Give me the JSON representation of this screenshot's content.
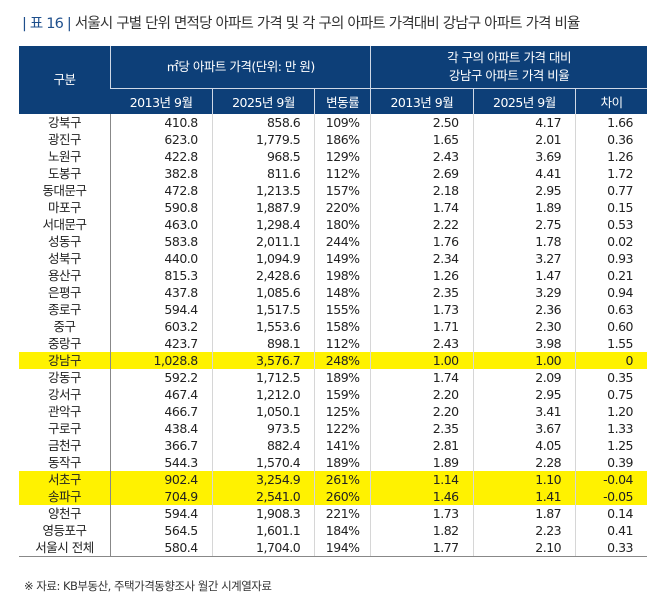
{
  "title": {
    "label": "| 표 16 |",
    "text": "서울시 구별 단위 면적당 아파트 가격 및 각 구의 아파트 가격대비 강남구 아파트 가격 비율"
  },
  "header": {
    "district": "구분",
    "group1": "㎡당 아파트 가격(단위: 만 원)",
    "group2_line1": "각 구의 아파트 가격 대비",
    "group2_line2": "강남구 아파트 가격 비율",
    "cols": [
      "2013년 9월",
      "2025년 9월",
      "변동률",
      "2013년 9월",
      "2025년 9월",
      "차이"
    ]
  },
  "highlight_color": "#fff200",
  "rows": [
    [
      "강북구",
      "410.8",
      "858.6",
      "109%",
      "2.50",
      "4.17",
      "1.66"
    ],
    [
      "광진구",
      "623.0",
      "1,779.5",
      "186%",
      "1.65",
      "2.01",
      "0.36"
    ],
    [
      "노원구",
      "422.8",
      "968.5",
      "129%",
      "2.43",
      "3.69",
      "1.26"
    ],
    [
      "도봉구",
      "382.8",
      "811.6",
      "112%",
      "2.69",
      "4.41",
      "1.72"
    ],
    [
      "동대문구",
      "472.8",
      "1,213.5",
      "157%",
      "2.18",
      "2.95",
      "0.77"
    ],
    [
      "마포구",
      "590.8",
      "1,887.9",
      "220%",
      "1.74",
      "1.89",
      "0.15"
    ],
    [
      "서대문구",
      "463.0",
      "1,298.4",
      "180%",
      "2.22",
      "2.75",
      "0.53"
    ],
    [
      "성동구",
      "583.8",
      "2,011.1",
      "244%",
      "1.76",
      "1.78",
      "0.02"
    ],
    [
      "성북구",
      "440.0",
      "1,094.9",
      "149%",
      "2.34",
      "3.27",
      "0.93"
    ],
    [
      "용산구",
      "815.3",
      "2,428.6",
      "198%",
      "1.26",
      "1.47",
      "0.21"
    ],
    [
      "은평구",
      "437.8",
      "1,085.6",
      "148%",
      "2.35",
      "3.29",
      "0.94"
    ],
    [
      "종로구",
      "594.4",
      "1,517.5",
      "155%",
      "1.73",
      "2.36",
      "0.63"
    ],
    [
      "중구",
      "603.2",
      "1,553.6",
      "158%",
      "1.71",
      "2.30",
      "0.60"
    ],
    [
      "중랑구",
      "423.7",
      "898.1",
      "112%",
      "2.43",
      "3.98",
      "1.55"
    ],
    [
      "강남구",
      "1,028.8",
      "3,576.7",
      "248%",
      "1.00",
      "1.00",
      "0"
    ],
    [
      "강동구",
      "592.2",
      "1,712.5",
      "189%",
      "1.74",
      "2.09",
      "0.35"
    ],
    [
      "강서구",
      "467.4",
      "1,212.0",
      "159%",
      "2.20",
      "2.95",
      "0.75"
    ],
    [
      "관악구",
      "466.7",
      "1,050.1",
      "125%",
      "2.20",
      "3.41",
      "1.20"
    ],
    [
      "구로구",
      "438.4",
      "973.5",
      "122%",
      "2.35",
      "3.67",
      "1.33"
    ],
    [
      "금천구",
      "366.7",
      "882.4",
      "141%",
      "2.81",
      "4.05",
      "1.25"
    ],
    [
      "동작구",
      "544.3",
      "1,570.4",
      "189%",
      "1.89",
      "2.28",
      "0.39"
    ],
    [
      "서초구",
      "902.4",
      "3,254.9",
      "261%",
      "1.14",
      "1.10",
      "-0.04"
    ],
    [
      "송파구",
      "704.9",
      "2,541.0",
      "260%",
      "1.46",
      "1.41",
      "-0.05"
    ],
    [
      "양천구",
      "594.4",
      "1,908.3",
      "221%",
      "1.73",
      "1.87",
      "0.14"
    ],
    [
      "영등포구",
      "564.5",
      "1,601.1",
      "184%",
      "1.82",
      "2.23",
      "0.41"
    ],
    [
      "서울시 전체",
      "580.4",
      "1,704.0",
      "194%",
      "1.77",
      "2.10",
      "0.33"
    ]
  ],
  "highlighted_rows": [
    "강남구",
    "서초구",
    "송파구"
  ],
  "footnote": "※ 자료: KB부동산, 주택가격동향조사 월간 시계열자료"
}
